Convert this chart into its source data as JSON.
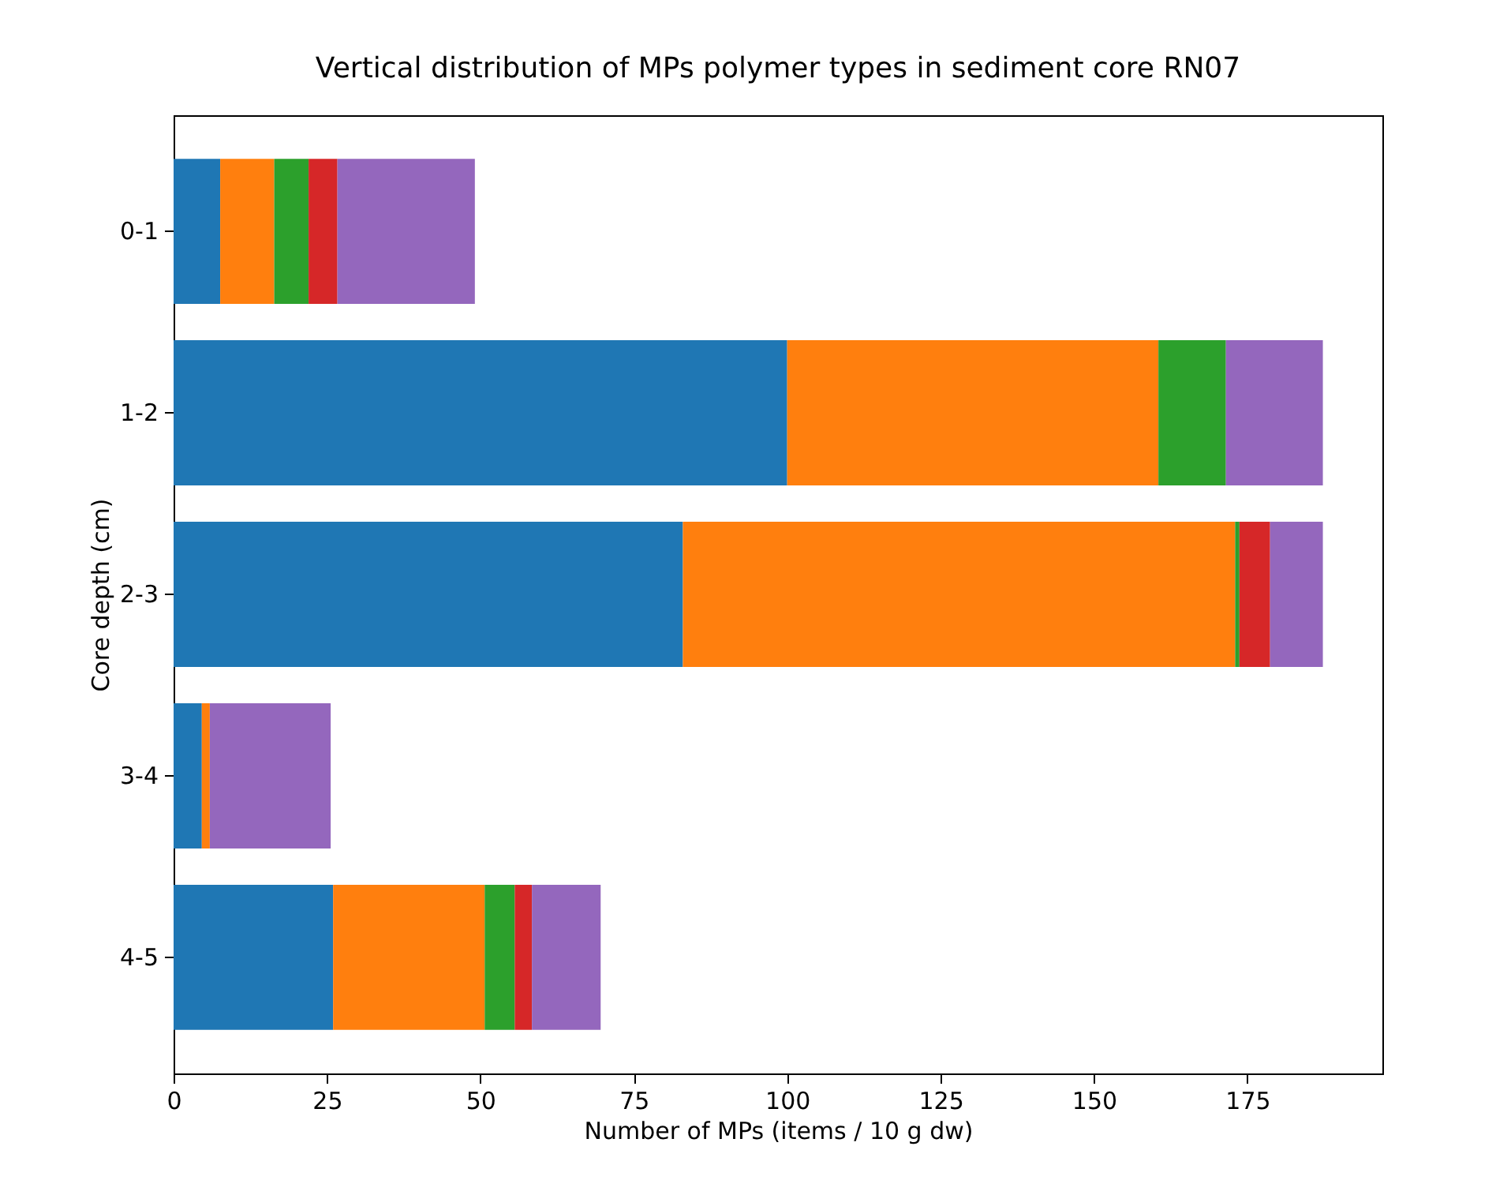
{
  "chart_data": {
    "type": "bar",
    "orientation": "horizontal",
    "stacked": true,
    "title": "Vertical distribution of MPs polymer types in sediment core RN07",
    "xlabel": "Number of MPs (items / 10 g dw)",
    "ylabel": "Core depth (cm)",
    "categories": [
      "0-1",
      "1-2",
      "2-3",
      "3-4",
      "4-5"
    ],
    "series": [
      {
        "color": "#1f77b4",
        "values": [
          7.6,
          100,
          83,
          4.6,
          26
        ]
      },
      {
        "color": "#ff7f0e",
        "values": [
          8.8,
          60.5,
          90,
          1.3,
          24.7
        ]
      },
      {
        "color": "#2ca02c",
        "values": [
          5.6,
          11,
          0.7,
          null,
          4.9
        ]
      },
      {
        "color": "#d62728",
        "values": [
          4.7,
          null,
          5,
          null,
          2.8
        ]
      },
      {
        "color": "#9467bd",
        "values": [
          22.4,
          15.8,
          8.6,
          19.7,
          11.2
        ]
      }
    ],
    "xlim": [
      0,
      197
    ],
    "xticks": [
      0,
      25,
      50,
      75,
      100,
      125,
      150,
      175
    ],
    "grid": false,
    "legend": false
  }
}
